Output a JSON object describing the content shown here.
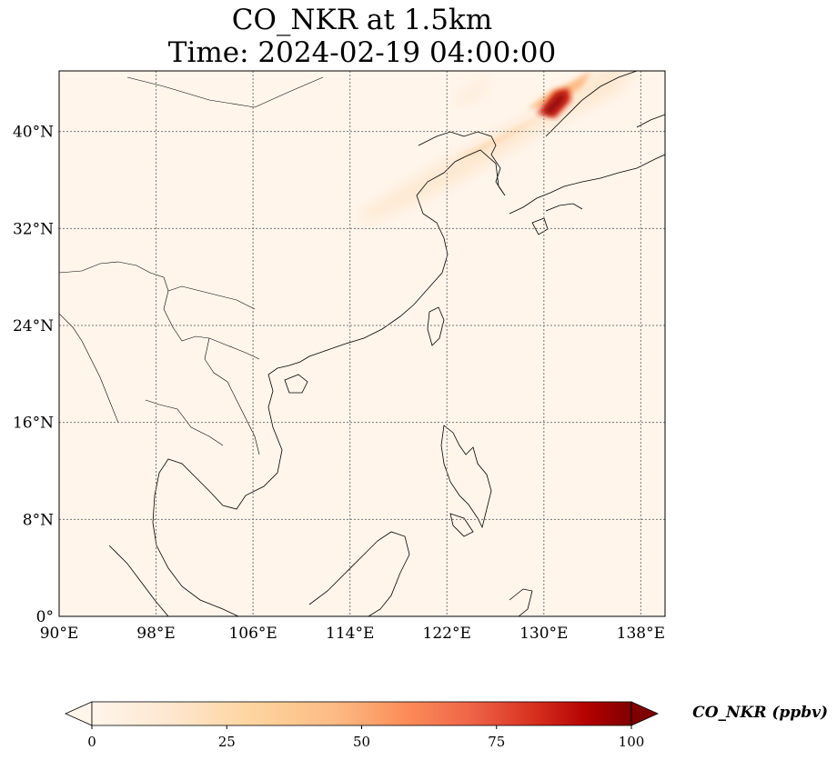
{
  "title": {
    "line1": "CO_NKR at 1.5km",
    "line2": "Time: 2024-02-19 04:00:00"
  },
  "map": {
    "lon_range": [
      90,
      140
    ],
    "lat_range": [
      0,
      45
    ],
    "lon_ticks": [
      {
        "value": 90,
        "label": "90°E"
      },
      {
        "value": 98,
        "label": "98°E"
      },
      {
        "value": 106,
        "label": "106°E"
      },
      {
        "value": 114,
        "label": "114°E"
      },
      {
        "value": 122,
        "label": "122°E"
      },
      {
        "value": 130,
        "label": "130°E"
      },
      {
        "value": 138,
        "label": "138°E"
      }
    ],
    "lat_ticks": [
      {
        "value": 0,
        "label": "0°"
      },
      {
        "value": 8,
        "label": "8°N"
      },
      {
        "value": 16,
        "label": "16°N"
      },
      {
        "value": 24,
        "label": "24°N"
      },
      {
        "value": 32,
        "label": "32°N"
      },
      {
        "value": 40,
        "label": "40°N"
      }
    ],
    "background_color": "#fff5eb",
    "gridline_color": "#777777",
    "coastline_color": "#000000"
  },
  "colorbar": {
    "label": "CO_NKR (ppbv)",
    "range": [
      0,
      100
    ],
    "ticks": [
      {
        "value": 0,
        "label": "0"
      },
      {
        "value": 25,
        "label": "25"
      },
      {
        "value": 50,
        "label": "50"
      },
      {
        "value": 75,
        "label": "75"
      },
      {
        "value": 100,
        "label": "100"
      }
    ],
    "colormap": [
      "#fff5eb",
      "#fdd49e",
      "#fdbb84",
      "#fc8d59",
      "#ef6548",
      "#d7301f",
      "#b30000",
      "#7f0000"
    ],
    "extend": "both"
  }
}
